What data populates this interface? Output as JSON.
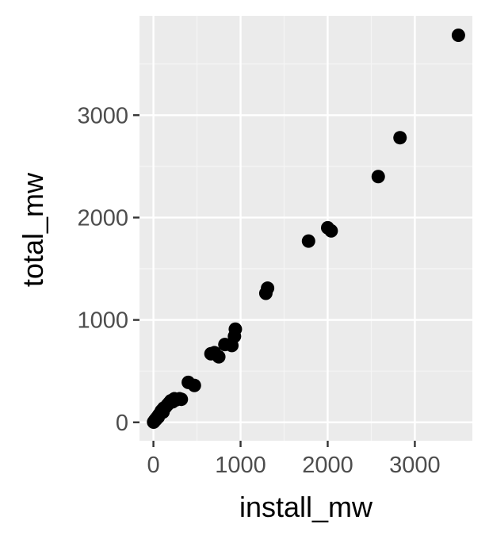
{
  "chart_data": {
    "type": "scatter",
    "title": "",
    "xlabel": "install_mw",
    "ylabel": "total_mw",
    "xlim": [
      -160,
      3660
    ],
    "ylim": [
      -180,
      3970
    ],
    "x_ticks": [
      0,
      1000,
      2000,
      3000
    ],
    "x_tick_labels": [
      "0",
      "1000",
      "2000",
      "3000"
    ],
    "y_ticks": [
      0,
      1000,
      2000,
      3000
    ],
    "y_tick_labels": [
      "0",
      "1000",
      "2000",
      "3000"
    ],
    "grid": true,
    "legend": "none",
    "colors": {
      "panel": "#ebebeb",
      "grid_major": "#ffffff",
      "grid_minor": "#f5f5f5",
      "point": "#000000",
      "tick": "#333333"
    },
    "points": [
      {
        "x": 2,
        "y": 2
      },
      {
        "x": 5,
        "y": 6
      },
      {
        "x": 10,
        "y": 12
      },
      {
        "x": 15,
        "y": 18
      },
      {
        "x": 20,
        "y": 20
      },
      {
        "x": 25,
        "y": 30
      },
      {
        "x": 30,
        "y": 28
      },
      {
        "x": 40,
        "y": 45
      },
      {
        "x": 50,
        "y": 55
      },
      {
        "x": 55,
        "y": 50
      },
      {
        "x": 60,
        "y": 70
      },
      {
        "x": 70,
        "y": 80
      },
      {
        "x": 80,
        "y": 90
      },
      {
        "x": 90,
        "y": 110
      },
      {
        "x": 100,
        "y": 120
      },
      {
        "x": 110,
        "y": 100
      },
      {
        "x": 120,
        "y": 140
      },
      {
        "x": 140,
        "y": 150
      },
      {
        "x": 160,
        "y": 170
      },
      {
        "x": 180,
        "y": 190
      },
      {
        "x": 200,
        "y": 210
      },
      {
        "x": 220,
        "y": 200
      },
      {
        "x": 240,
        "y": 230
      },
      {
        "x": 260,
        "y": 220
      },
      {
        "x": 300,
        "y": 230
      },
      {
        "x": 320,
        "y": 225
      },
      {
        "x": 400,
        "y": 390
      },
      {
        "x": 470,
        "y": 360
      },
      {
        "x": 660,
        "y": 670
      },
      {
        "x": 700,
        "y": 680
      },
      {
        "x": 750,
        "y": 640
      },
      {
        "x": 820,
        "y": 760
      },
      {
        "x": 900,
        "y": 750
      },
      {
        "x": 930,
        "y": 840
      },
      {
        "x": 940,
        "y": 910
      },
      {
        "x": 1290,
        "y": 1260
      },
      {
        "x": 1310,
        "y": 1310
      },
      {
        "x": 1780,
        "y": 1770
      },
      {
        "x": 2000,
        "y": 1900
      },
      {
        "x": 2040,
        "y": 1870
      },
      {
        "x": 2580,
        "y": 2400
      },
      {
        "x": 2830,
        "y": 2780
      },
      {
        "x": 3500,
        "y": 3780
      }
    ]
  }
}
